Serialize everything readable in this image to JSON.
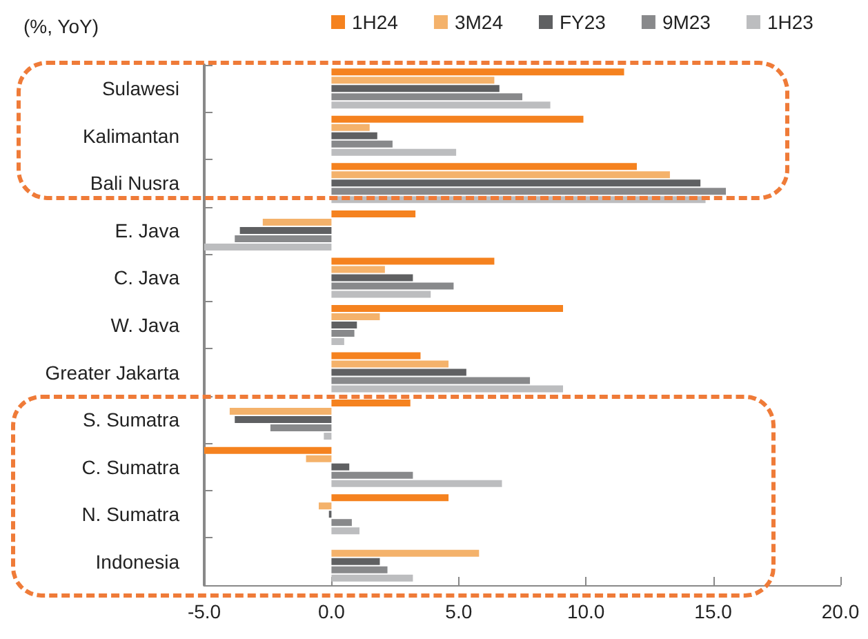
{
  "chart_data": {
    "type": "bar",
    "orientation": "horizontal",
    "annotations": [
      "(%, YoY)"
    ],
    "categories": [
      "Sulawesi",
      "Kalimantan",
      "Bali Nusra",
      "E. Java",
      "C. Java",
      "W. Java",
      "Greater Jakarta",
      "S. Sumatra",
      "C. Sumatra",
      "N. Sumatra",
      "Indonesia"
    ],
    "series": [
      {
        "name": "1H24",
        "color": "#f5821f",
        "values": [
          11.5,
          9.9,
          12.0,
          3.3,
          6.4,
          9.1,
          3.5,
          3.1,
          -5.0,
          4.6,
          null
        ]
      },
      {
        "name": "3M24",
        "color": "#f4b26b",
        "values": [
          6.4,
          1.5,
          13.3,
          -2.7,
          2.1,
          1.9,
          4.6,
          -4.0,
          -1.0,
          -0.5,
          5.8
        ]
      },
      {
        "name": "FY23",
        "color": "#5f6062",
        "values": [
          6.6,
          1.8,
          14.5,
          -3.6,
          3.2,
          1.0,
          5.3,
          -3.8,
          0.7,
          -0.1,
          1.9
        ]
      },
      {
        "name": "9M23",
        "color": "#88898b",
        "values": [
          7.5,
          2.4,
          15.5,
          -3.8,
          4.8,
          0.9,
          7.8,
          -2.4,
          3.2,
          0.8,
          2.2
        ]
      },
      {
        "name": "1H23",
        "color": "#bcbdbf",
        "values": [
          8.6,
          4.9,
          14.7,
          -5.0,
          3.9,
          0.5,
          9.1,
          -0.3,
          6.7,
          1.1,
          3.2
        ]
      }
    ],
    "xlim": [
      -5,
      20
    ],
    "xticks": [
      {
        "value": -5,
        "label": "-5.0"
      },
      {
        "value": 0,
        "label": "0.0"
      },
      {
        "value": 5,
        "label": "5.0"
      },
      {
        "value": 10,
        "label": "10.0"
      },
      {
        "value": 15,
        "label": "15.0"
      },
      {
        "value": 20,
        "label": "20.0"
      }
    ],
    "legend": "top",
    "grid": false
  }
}
